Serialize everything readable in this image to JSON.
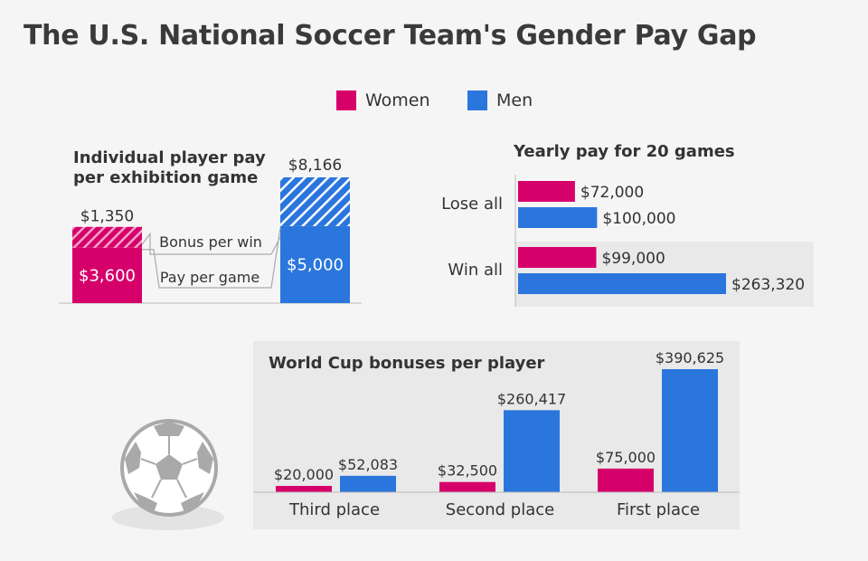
{
  "title": "The U.S. National Soccer Team's Gender Pay Gap",
  "colors": {
    "women": "#d6006b",
    "men": "#2a76dd",
    "panel": "#e9e9e9"
  },
  "legend": [
    {
      "label": "Women",
      "color": "#d6006b"
    },
    {
      "label": "Men",
      "color": "#2a76dd"
    }
  ],
  "decor": {
    "icon": "soccer-ball-icon"
  },
  "chart_data": [
    {
      "type": "bar",
      "title": "Individual player pay per exhibition game",
      "title_lines": [
        "Individual player pay",
        "per exhibition game"
      ],
      "stacked": true,
      "categories": [
        "Women",
        "Men"
      ],
      "series": [
        {
          "name": "Pay per game",
          "values": [
            3600,
            5000
          ],
          "labels": [
            "$3,600",
            "$5,000"
          ]
        },
        {
          "name": "Bonus per win",
          "values": [
            1350,
            3166
          ],
          "labels": [
            "$1,350",
            ""
          ]
        }
      ],
      "total_labels": [
        "",
        "$8,166"
      ]
    },
    {
      "type": "bar",
      "orientation": "horizontal",
      "title": "Yearly pay for 20 games",
      "categories": [
        "Lose all",
        "Win all"
      ],
      "series": [
        {
          "name": "Women",
          "values": [
            72000,
            99000
          ],
          "labels": [
            "$72,000",
            "$99,000"
          ]
        },
        {
          "name": "Men",
          "values": [
            100000,
            263320
          ],
          "labels": [
            "$100,000",
            "$263,320"
          ]
        }
      ]
    },
    {
      "type": "bar",
      "title": "World Cup bonuses per player",
      "categories": [
        "Third place",
        "Second place",
        "First place"
      ],
      "series": [
        {
          "name": "Women",
          "values": [
            20000,
            32500,
            75000
          ],
          "labels": [
            "$20,000",
            "$32,500",
            "$75,000"
          ]
        },
        {
          "name": "Men",
          "values": [
            52083,
            260417,
            390625
          ],
          "labels": [
            "$52,083",
            "$260,417",
            "$390,625"
          ]
        }
      ]
    }
  ]
}
